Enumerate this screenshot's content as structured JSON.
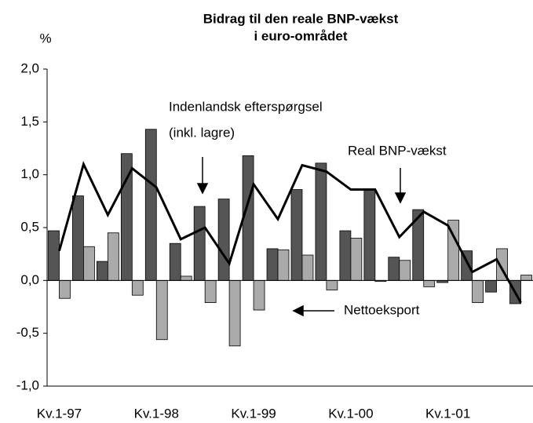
{
  "chart_data": {
    "type": "bar",
    "title": [
      "Bidrag til den reale BNP-vækst",
      "i euro-området"
    ],
    "y_label": "%",
    "categories": [
      "Kv.1-97",
      null,
      null,
      null,
      "Kv.1-98",
      null,
      null,
      null,
      "Kv.1-99",
      null,
      null,
      null,
      "Kv.1-00",
      null,
      null,
      null,
      "Kv.1-01",
      null,
      null,
      null
    ],
    "series": [
      {
        "color": "#555555",
        "kind": "bar",
        "values": [
          0.47,
          0.8,
          0.18,
          1.2,
          1.43,
          0.35,
          0.7,
          0.77,
          1.18,
          0.3,
          0.86,
          1.11,
          0.47,
          0.86,
          0.22,
          0.67,
          -0.02,
          0.28,
          -0.11,
          -0.22
        ]
      },
      {
        "color": "#aaaaaa",
        "kind": "bar",
        "values": [
          -0.17,
          0.32,
          0.45,
          -0.14,
          -0.56,
          0.04,
          -0.21,
          -0.62,
          -0.28,
          0.29,
          0.24,
          -0.09,
          0.4,
          -0.01,
          0.19,
          -0.06,
          0.57,
          -0.21,
          0.3,
          0.05
        ]
      },
      {
        "color": "#000000",
        "kind": "line",
        "values": [
          0.28,
          1.1,
          0.62,
          1.06,
          0.88,
          0.39,
          0.5,
          0.16,
          0.91,
          0.58,
          1.09,
          1.03,
          0.86,
          0.86,
          0.41,
          0.65,
          0.52,
          0.08,
          0.2,
          -0.21
        ]
      }
    ],
    "annotations": [
      "Indenlandsk efterspørgsel",
      "(inkl. lagre)",
      "Real BNP-vækst",
      "Nettoeksport"
    ],
    "ylim": [
      -1.0,
      2.0
    ],
    "yticks": [
      {
        "value": -1.0,
        "label": "-1,0"
      },
      {
        "value": -0.5,
        "label": "-0,5"
      },
      {
        "value": 0.0,
        "label": "0,0"
      },
      {
        "value": 0.5,
        "label": "0,5"
      },
      {
        "value": 1.0,
        "label": "1,0"
      },
      {
        "value": 1.5,
        "label": "1,5"
      },
      {
        "value": 2.0,
        "label": "2,0"
      }
    ],
    "grid": false
  }
}
